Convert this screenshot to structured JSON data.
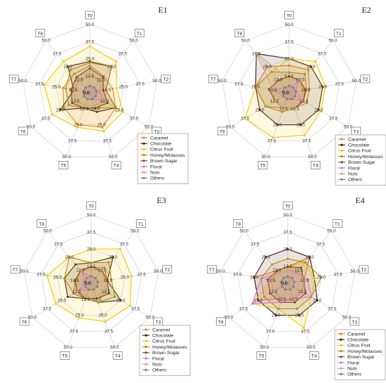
{
  "chart_data": [
    {
      "type": "radar",
      "title": "E1",
      "axes": [
        "T0",
        "T1",
        "T2",
        "T3",
        "T4",
        "T5",
        "T6",
        "T7",
        "T8"
      ],
      "rmax": 50,
      "ring_ticks": [
        0,
        12.5,
        25,
        37.5,
        50
      ],
      "ring_labels": [
        "0.0",
        "12.5",
        "25.0",
        "37.5",
        "50.0"
      ],
      "legend": [
        "Caramel",
        "Chocolate",
        "Citrus Fruit",
        "Honey/Molasses",
        "Brown Sugar",
        "Floral",
        "Nuts",
        "Others"
      ],
      "series": [
        {
          "name": "Caramel",
          "values": [
            20,
            16,
            17,
            22,
            27,
            25,
            22,
            20,
            18
          ]
        },
        {
          "name": "Chocolate",
          "values": [
            23,
            25,
            12,
            22,
            15,
            12,
            25,
            12,
            25
          ]
        },
        {
          "name": "Citrus Fruit",
          "values": [
            34,
            30,
            20,
            28,
            30,
            27,
            32,
            34,
            30
          ]
        },
        {
          "name": "Honey/Molasses",
          "values": [
            22,
            25,
            12,
            22,
            12,
            12,
            18,
            18,
            22
          ]
        },
        {
          "name": "Brown Sugar",
          "values": [
            18,
            15,
            10,
            15,
            12,
            12,
            15,
            14,
            15
          ]
        },
        {
          "name": "Floral",
          "values": [
            5,
            5,
            7,
            12,
            5,
            5,
            5,
            5,
            5
          ]
        },
        {
          "name": "Nuts",
          "values": [
            12,
            12,
            8,
            12,
            10,
            10,
            12,
            12,
            12
          ]
        },
        {
          "name": "Others",
          "values": [
            5,
            5,
            5,
            5,
            5,
            5,
            5,
            5,
            5
          ]
        }
      ]
    },
    {
      "type": "radar",
      "title": "E2",
      "axes": [
        "T0",
        "T1",
        "T2",
        "T3",
        "T4",
        "T5",
        "T6",
        "T7",
        "T8"
      ],
      "rmax": 50,
      "ring_ticks": [
        0,
        12.5,
        25,
        37.5,
        50
      ],
      "ring_labels": [
        "0.0",
        "12.5",
        "25.0",
        "37.5",
        "50.0"
      ],
      "legend": [
        "Caramel",
        "Chocolate",
        "Citrus Fruit",
        "Honey/Molasses",
        "Brown Sugar",
        "Floral",
        "Nuts",
        "Others"
      ],
      "series": [
        {
          "name": "Caramel",
          "values": [
            20,
            22,
            15,
            15,
            12,
            15,
            20,
            25,
            25
          ]
        },
        {
          "name": "Chocolate",
          "values": [
            25,
            25,
            25,
            25,
            25,
            25,
            25,
            25,
            37.5
          ]
        },
        {
          "name": "Citrus Fruit",
          "values": [
            25,
            30,
            27,
            27,
            33,
            35,
            37.5,
            25,
            20
          ]
        },
        {
          "name": "Honey/Molasses",
          "values": [
            15,
            18,
            13,
            12,
            12,
            12,
            20,
            25,
            20
          ]
        },
        {
          "name": "Brown Sugar",
          "values": [
            12,
            12,
            12,
            12,
            12,
            12,
            12,
            15,
            12
          ]
        },
        {
          "name": "Floral",
          "values": [
            5,
            10,
            5,
            12,
            5,
            5,
            5,
            12,
            5
          ]
        },
        {
          "name": "Nuts",
          "values": [
            10,
            12,
            10,
            10,
            12,
            12,
            12,
            12,
            37.5
          ]
        },
        {
          "name": "Others",
          "values": [
            5,
            5,
            5,
            5,
            5,
            5,
            5,
            5,
            5
          ]
        }
      ]
    },
    {
      "type": "radar",
      "title": "E3",
      "axes": [
        "T0",
        "T1",
        "T2",
        "T3",
        "T4",
        "T5",
        "T6",
        "T7",
        "T8"
      ],
      "rmax": 50,
      "ring_ticks": [
        0,
        12.5,
        25,
        37.5,
        50
      ],
      "ring_labels": [
        "0.0",
        "12.5",
        "25.0",
        "37.5",
        "50.0"
      ],
      "legend": [
        "Caramel",
        "Chocolate",
        "Citrus Fruit",
        "Honey/Molasses",
        "Brown Sugar",
        "Floral",
        "Nuts",
        "Others"
      ],
      "series": [
        {
          "name": "Caramel",
          "values": [
            12,
            15,
            12,
            15,
            12,
            12,
            15,
            12,
            12
          ]
        },
        {
          "name": "Chocolate",
          "values": [
            15,
            25,
            12,
            25,
            15,
            12,
            20,
            20,
            18
          ]
        },
        {
          "name": "Citrus Fruit",
          "values": [
            25,
            33,
            30,
            33,
            30,
            27,
            30,
            33,
            25
          ]
        },
        {
          "name": "Honey/Molasses",
          "values": [
            15,
            20,
            15,
            20,
            15,
            12,
            15,
            20,
            25
          ]
        },
        {
          "name": "Brown Sugar",
          "values": [
            12,
            12,
            12,
            15,
            12,
            12,
            12,
            12,
            12
          ]
        },
        {
          "name": "Floral",
          "values": [
            5,
            5,
            5,
            5,
            5,
            5,
            10,
            5,
            10
          ]
        },
        {
          "name": "Nuts",
          "values": [
            10,
            12,
            10,
            12,
            10,
            10,
            12,
            10,
            12
          ]
        },
        {
          "name": "Others",
          "values": [
            5,
            5,
            5,
            5,
            5,
            5,
            5,
            5,
            5
          ]
        }
      ]
    },
    {
      "type": "radar",
      "title": "E4",
      "axes": [
        "T0",
        "T1",
        "T2",
        "T3",
        "T4",
        "T5",
        "T6",
        "T7",
        "T8"
      ],
      "rmax": 50,
      "ring_ticks": [
        0,
        12.5,
        25,
        37.5,
        50
      ],
      "ring_labels": [
        "0.0",
        "12.5",
        "25.0",
        "37.5",
        "50.0"
      ],
      "legend": [
        "Caramel",
        "Chocolate",
        "Citrus Fruit",
        "Honey/Molasses",
        "Brown Sugar",
        "Floral",
        "Nuts",
        "Others"
      ],
      "series": [
        {
          "name": "Caramel",
          "values": [
            12,
            25,
            12,
            12,
            12,
            12,
            25,
            25,
            12
          ]
        },
        {
          "name": "Chocolate",
          "values": [
            25,
            25,
            20,
            25,
            25,
            25,
            25,
            25,
            25
          ]
        },
        {
          "name": "Citrus Fruit",
          "values": [
            12,
            20,
            20,
            20,
            35,
            20,
            30,
            12,
            12
          ]
        },
        {
          "name": "Honey/Molasses",
          "values": [
            18,
            20,
            25,
            20,
            20,
            20,
            20,
            20,
            18
          ]
        },
        {
          "name": "Brown Sugar",
          "values": [
            12,
            15,
            12,
            15,
            15,
            15,
            15,
            15,
            12
          ]
        },
        {
          "name": "Floral",
          "values": [
            10,
            10,
            15,
            20,
            12,
            15,
            30,
            20,
            10
          ]
        },
        {
          "name": "Nuts",
          "values": [
            10,
            12,
            12,
            12,
            12,
            12,
            12,
            12,
            10
          ]
        },
        {
          "name": "Others",
          "values": [
            5,
            5,
            5,
            5,
            5,
            5,
            5,
            5,
            5
          ]
        }
      ]
    }
  ],
  "colors": {
    "Caramel": "#e67e22",
    "Chocolate": "#3b1f0e",
    "Citrus Fruit": "#f2c500",
    "Honey/Molasses": "#b8860b",
    "Brown Sugar": "#8b4513",
    "Floral": "#da70d6",
    "Nuts": "#d2a56d",
    "Others": "#808080"
  }
}
